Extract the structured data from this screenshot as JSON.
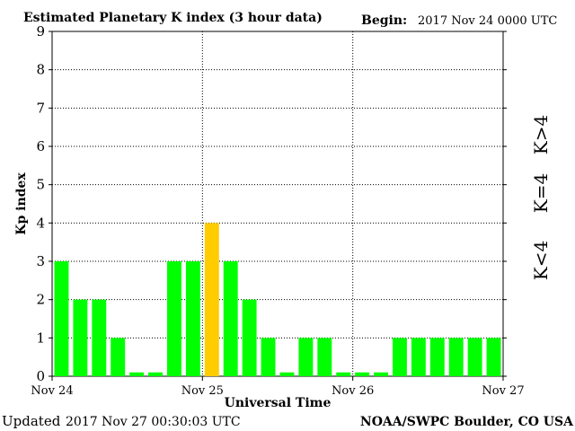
{
  "header": {
    "title": "Estimated Planetary K index (3 hour data)",
    "begin_label": "Begin:",
    "begin_value": "2017 Nov 24 0000 UTC"
  },
  "footer": {
    "updated_label": "Updated",
    "updated_value": "2017 Nov 27 00:30:03 UTC",
    "source": "NOAA/SWPC Boulder, CO USA"
  },
  "legend": {
    "high": "K>4",
    "mid": "K=4",
    "low": "K<4"
  },
  "colors": {
    "low": "#00ff00",
    "mid": "#ffcc00",
    "high": "#ff2200"
  },
  "chart_data": {
    "type": "bar",
    "title": "Estimated Planetary K index (3 hour data)",
    "xlabel": "Universal Time",
    "ylabel": "Kp index",
    "ylim": [
      0,
      9
    ],
    "yticks": [
      0,
      1,
      2,
      3,
      4,
      5,
      6,
      7,
      8,
      9
    ],
    "grid": true,
    "x_tick_labels": [
      "Nov 24",
      "Nov 25",
      "Nov 26",
      "Nov 27"
    ],
    "values": [
      3,
      2,
      2,
      1,
      0.1,
      0.1,
      3,
      3,
      4,
      3,
      2,
      1,
      0.1,
      1,
      1,
      0.1,
      0.1,
      0.1,
      1,
      1,
      1,
      1,
      1,
      1
    ]
  }
}
